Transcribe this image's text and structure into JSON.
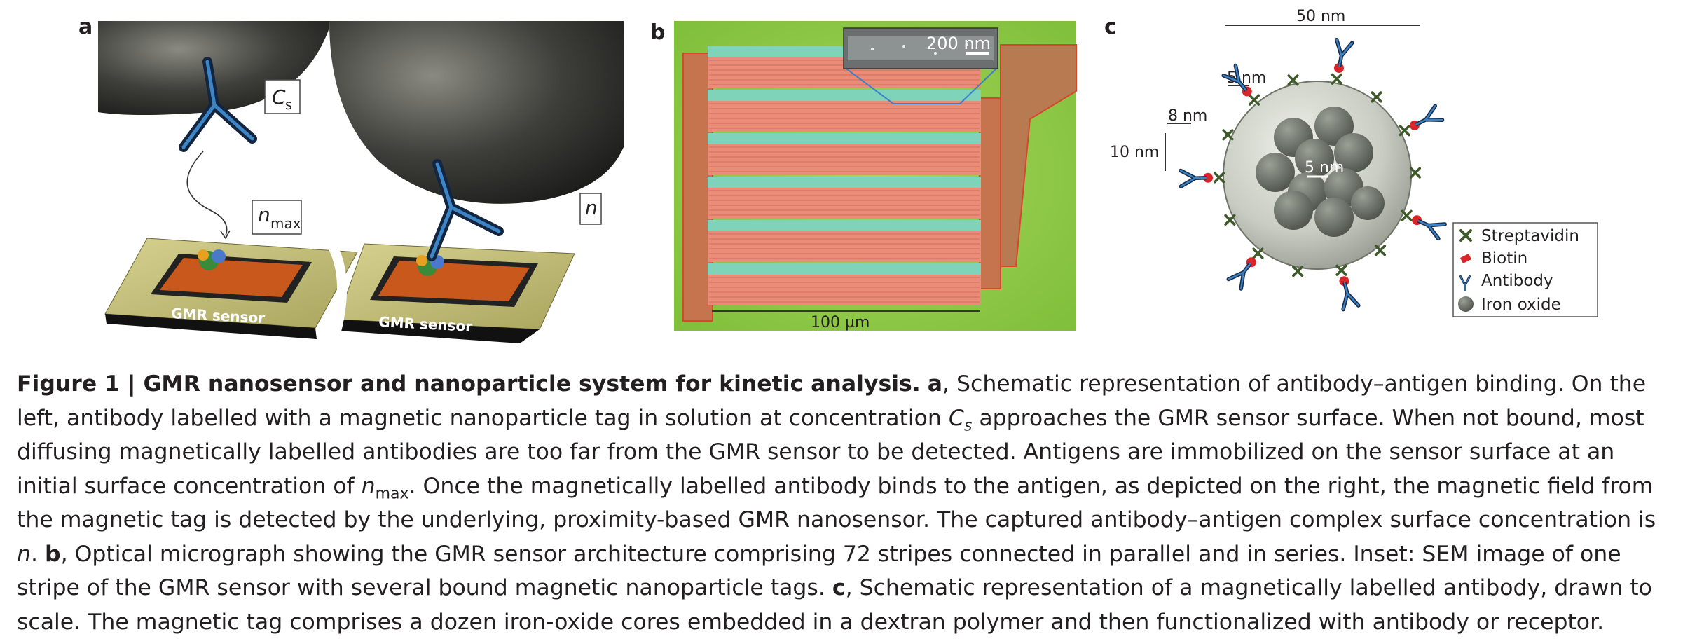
{
  "figure": {
    "panel_a": {
      "letter": "a",
      "label_cs_main": "C",
      "label_cs_sub": "s",
      "label_nmax_main": "n",
      "label_nmax_sub": "max",
      "label_n": "n",
      "sensor_left_label": "GMR sensor",
      "sensor_right_label": "GMR sensor"
    },
    "panel_b": {
      "letter": "b",
      "inset_scale": "200 nm",
      "main_scale": "100 µm"
    },
    "panel_c": {
      "letter": "c",
      "scale_50nm": "50 nm",
      "scale_5nm_top": "5 nm",
      "scale_8nm": "8 nm",
      "scale_10nm": "10 nm",
      "scale_5nm_core": "5 nm",
      "legend": [
        "Streptavidin",
        "Biotin",
        "Antibody",
        "Iron oxide"
      ]
    }
  },
  "caption": {
    "figure_label": "Figure 1 | GMR nanosensor and nanoparticle system for kinetic analysis.",
    "a_letter": "a",
    "a1": ", Schematic representation of antibody–antigen binding. On the left, antibody labelled with a magnetic nanoparticle tag in solution at concentration ",
    "cs_main": "C",
    "cs_sub": "s",
    "a2": " approaches the GMR sensor surface. When not bound, most diffusing magnetically labelled antibodies are too far from the GMR sensor to be detected. Antigens are immobilized on the sensor surface at an initial surface concentration of ",
    "nmax_main": "n",
    "nmax_sub": "max",
    "a3": ". Once the magnetically labelled antibody binds to the antigen, as depicted on the right, the magnetic field from the magnetic tag is detected by the underlying, proximity-based GMR nanosensor. The captured antibody–antigen complex surface concentration is ",
    "n": "n",
    "a4": ". ",
    "b_letter": "b",
    "b_text": ", Optical micrograph showing the GMR sensor architecture comprising 72 stripes connected in parallel and in series. Inset: SEM image of one stripe of the GMR sensor with several bound magnetic nanoparticle tags. ",
    "c_letter": "c",
    "c_text": ", Schematic representation of a magnetically labelled antibody, drawn to scale. The magnetic tag comprises a dozen iron-oxide cores embedded in a dextran polymer and then functionalized with antibody or receptor."
  }
}
